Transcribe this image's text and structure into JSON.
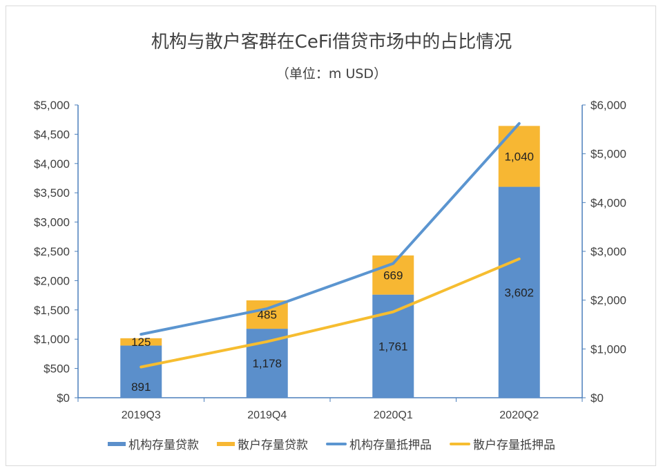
{
  "chart_data": {
    "type": "bar+line",
    "title": "机构与散户客群在CeFi借贷市场中的占比情况",
    "subtitle": "（单位：m USD）",
    "categories": [
      "2019Q3",
      "2019Q4",
      "2020Q1",
      "2020Q2"
    ],
    "y_left": {
      "ylim": [
        0,
        5000
      ],
      "ticks": [
        "$0",
        "$500",
        "$1,000",
        "$1,500",
        "$2,000",
        "$2,500",
        "$3,000",
        "$3,500",
        "$4,000",
        "$4,500",
        "$5,000"
      ]
    },
    "y_right": {
      "ylim": [
        0,
        6000
      ],
      "ticks": [
        "$0",
        "$1,000",
        "$2,000",
        "$3,000",
        "$4,000",
        "$5,000",
        "$6,000"
      ]
    },
    "series": [
      {
        "name": "机构存量贷款",
        "type": "bar",
        "stack": true,
        "axis": "left",
        "color": "#5b8fcb",
        "values": [
          891,
          1178,
          1761,
          3602
        ],
        "labels": [
          "891",
          "1,178",
          "1,761",
          "3,602"
        ]
      },
      {
        "name": "散户存量贷款",
        "type": "bar",
        "stack": true,
        "axis": "left",
        "color": "#f7b733",
        "values": [
          125,
          485,
          669,
          1040
        ],
        "labels": [
          "125",
          "485",
          "669",
          "1,040"
        ]
      },
      {
        "name": "机构存量抵押品",
        "type": "line",
        "axis": "right",
        "color": "#5b95d0",
        "values": [
          1300,
          1825,
          2750,
          5620
        ]
      },
      {
        "name": "散户存量抵押品",
        "type": "line",
        "axis": "right",
        "color": "#f6bd30",
        "values": [
          630,
          1150,
          1760,
          2845
        ]
      }
    ],
    "legend": "bottom",
    "grid": false
  }
}
